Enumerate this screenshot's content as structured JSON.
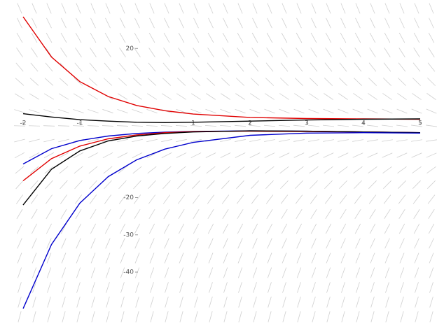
{
  "chart_data": {
    "type": "line",
    "x": [
      -2,
      -1.5,
      -1,
      -0.5,
      0,
      0.5,
      1,
      2,
      3,
      4,
      5
    ],
    "series": [
      {
        "color": "#e00000",
        "values": [
          28.5,
          17.7,
          11.1,
          7.1,
          4.7,
          3.3,
          2.4,
          1.5,
          1.2,
          1.1,
          1.0
        ]
      },
      {
        "color": "#000000",
        "values": [
          2.5,
          1.6,
          0.9,
          0.5,
          0.2,
          0.1,
          0.2,
          0.5,
          0.8,
          1.0,
          1.1
        ]
      },
      {
        "color": "#0000cc",
        "values": [
          -11,
          -6.9,
          -4.7,
          -3.5,
          -2.8,
          -2.45,
          -2.25,
          -2.1,
          -2.2,
          -2.4,
          -2.6
        ]
      },
      {
        "color": "#e00000",
        "values": [
          -15.5,
          -9.55,
          -6.2,
          -4.25,
          -3.2,
          -2.6,
          -2.3,
          -2.2,
          -2.3,
          -2.4,
          -2.6
        ]
      },
      {
        "color": "#000000",
        "values": [
          -22,
          -12.4,
          -7.5,
          -4.8,
          -3.5,
          -2.8,
          -2.4,
          -2.1,
          -2.2,
          -2.4,
          -2.6
        ]
      },
      {
        "color": "#0000cc",
        "values": [
          -49.8,
          -32.6,
          -21.5,
          -14.4,
          -9.9,
          -7.0,
          -5.2,
          -3.3,
          -2.7,
          -2.6,
          -2.7
        ]
      }
    ],
    "xlim": [
      -2,
      5
    ],
    "ylim": [
      -55,
      33
    ],
    "xticks": [
      -2,
      -1,
      1,
      2,
      3,
      4,
      5
    ],
    "yticks": [
      -40,
      -30,
      -20,
      20
    ]
  }
}
